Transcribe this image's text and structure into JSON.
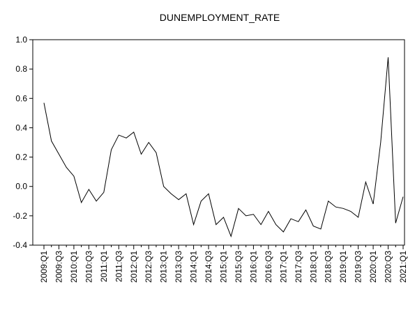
{
  "chart_data": {
    "type": "line",
    "title": "DUNEMPLOYMENT_RATE",
    "categories": [
      "2009:Q1",
      null,
      "2009:Q3",
      null,
      "2010:Q1",
      null,
      "2010:Q3",
      null,
      "2011:Q1",
      null,
      "2011:Q3",
      null,
      "2012:Q1",
      null,
      "2012:Q3",
      null,
      "2013:Q1",
      null,
      "2013:Q3",
      null,
      "2014:Q1",
      null,
      "2014:Q3",
      null,
      "2015:Q1",
      null,
      "2015:Q3",
      null,
      "2016:Q1",
      null,
      "2016:Q3",
      null,
      "2017:Q1",
      null,
      "2017:Q3",
      null,
      "2018:Q1",
      null,
      "2018:Q3",
      null,
      "2019:Q1",
      null,
      "2019:Q3",
      null,
      "2020:Q1",
      null,
      "2020:Q3",
      null,
      "2021:Q1"
    ],
    "values": [
      0.57,
      0.31,
      0.22,
      0.13,
      0.07,
      -0.11,
      -0.02,
      -0.1,
      -0.04,
      0.25,
      0.35,
      0.33,
      0.37,
      0.22,
      0.3,
      0.23,
      0.0,
      -0.05,
      -0.09,
      -0.05,
      -0.26,
      -0.1,
      -0.05,
      -0.26,
      -0.21,
      -0.34,
      -0.15,
      -0.2,
      -0.19,
      -0.26,
      -0.17,
      -0.26,
      -0.31,
      -0.22,
      -0.24,
      -0.16,
      -0.27,
      -0.29,
      -0.1,
      -0.14,
      -0.15,
      -0.17,
      -0.21,
      0.03,
      -0.12,
      0.3,
      0.88,
      -0.25,
      -0.07
    ],
    "color": "#000000",
    "ylim": [
      -0.4,
      1.0
    ],
    "yticks": [
      {
        "value": -0.4,
        "label": "-0.4"
      },
      {
        "value": -0.2,
        "label": "-0.2"
      },
      {
        "value": 0,
        "label": "0.0"
      },
      {
        "value": 0.2,
        "label": "0.2"
      },
      {
        "value": 0.4,
        "label": "0.4"
      },
      {
        "value": 0.6,
        "label": "0.6"
      },
      {
        "value": 0.8,
        "label": "0.8"
      },
      {
        "value": 1.0,
        "label": "1.0"
      }
    ],
    "grid": false
  }
}
